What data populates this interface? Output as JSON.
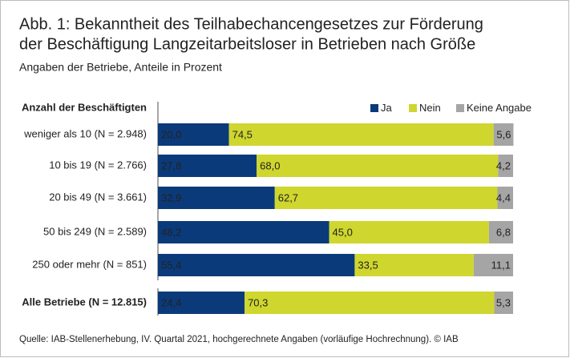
{
  "chart_data": {
    "type": "stacked-bar-horizontal",
    "title": [
      "Abb. 1: Bekanntheit des Teilhabechancengesetzes zur Förderung",
      "der Beschäftigung Langzeitarbeitsloser in Betrieben nach Größe"
    ],
    "subtitle": "Angaben der Betriebe, Anteile in Prozent",
    "y_axis_label": "Anzahl der Beschäftigten",
    "categories": [
      "weniger als 10 (N = 2.948)",
      "10 bis 19 (N = 2.766)",
      "20 bis 49 (N = 3.661)",
      "50 bis 249 (N = 2.589)",
      "250 oder mehr (N = 851)",
      "Alle Betriebe (N = 12.815)"
    ],
    "series": [
      {
        "name": "Ja",
        "color": "#0b3a7a",
        "values": [
          20.0,
          27.8,
          32.9,
          48.2,
          55.4,
          24.4
        ],
        "value_labels": [
          "20,0",
          "27,8",
          "32,9",
          "48,2",
          "55,4",
          "24,4"
        ]
      },
      {
        "name": "Nein",
        "color": "#cfd62e",
        "values": [
          74.5,
          68.0,
          62.7,
          45.0,
          33.5,
          70.3
        ],
        "value_labels": [
          "74,5",
          "68,0",
          "62,7",
          "45,0",
          "33,5",
          "70,3"
        ]
      },
      {
        "name": "Keine Angabe",
        "color": "#a5a5a5",
        "values": [
          5.6,
          4.2,
          4.4,
          6.8,
          11.1,
          5.3
        ],
        "value_labels": [
          "5,6",
          "4,2",
          "4,4",
          "6,8",
          "11,1",
          "5,3"
        ]
      }
    ],
    "xlim": [
      0,
      100
    ],
    "legend": "top-right",
    "source": "Quelle: IAB-Stellenerhebung, IV. Quartal 2021, hochgerechnete Angaben (vorläufige Hochrechnung). © IAB"
  }
}
